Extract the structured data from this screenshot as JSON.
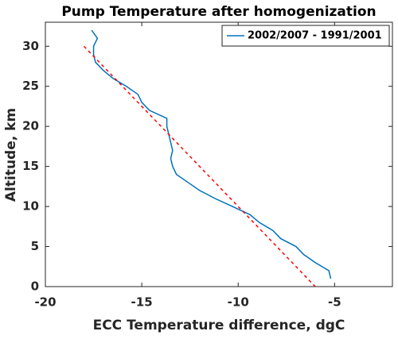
{
  "chart_data": {
    "type": "line",
    "title": "Pump Temperature after homogenization",
    "xlabel": "ECC Temperature difference, dgC",
    "ylabel": "Altitude, km",
    "xlim": [
      -20,
      -2
    ],
    "xticks": [
      -20,
      -15,
      -10,
      -5
    ],
    "ylim": [
      0,
      33
    ],
    "yticks": [
      0,
      5,
      10,
      15,
      20,
      25,
      30
    ],
    "grid": false,
    "legend": "upper right",
    "series": [
      {
        "name": "2002/2007 - 1991/2001",
        "color": "#0072bd",
        "x": [
          -5.2,
          -5.3,
          -6,
          -6.6,
          -7,
          -7.8,
          -8.2,
          -8.9,
          -9.4,
          -10.3,
          -11.2,
          -12,
          -12.6,
          -13.2,
          -13.4,
          -13.5,
          -13.4,
          -13.5,
          -13.6,
          -13.7,
          -13.7,
          -14.6,
          -15,
          -15.2,
          -15.8,
          -16.5,
          -17,
          -17.4,
          -17.5,
          -17.5,
          -17.3,
          -17.6
        ],
        "y": [
          1,
          2,
          3,
          4,
          5,
          6,
          7,
          8,
          9,
          10,
          11,
          12,
          13,
          14,
          15,
          16,
          17,
          18,
          19,
          20,
          21,
          22,
          23,
          24,
          25,
          26,
          27,
          28,
          29,
          30,
          31,
          32
        ]
      },
      {
        "color": "#ff0000",
        "dashed": true,
        "x": [
          -18,
          -6
        ],
        "y": [
          30,
          0
        ]
      }
    ]
  }
}
